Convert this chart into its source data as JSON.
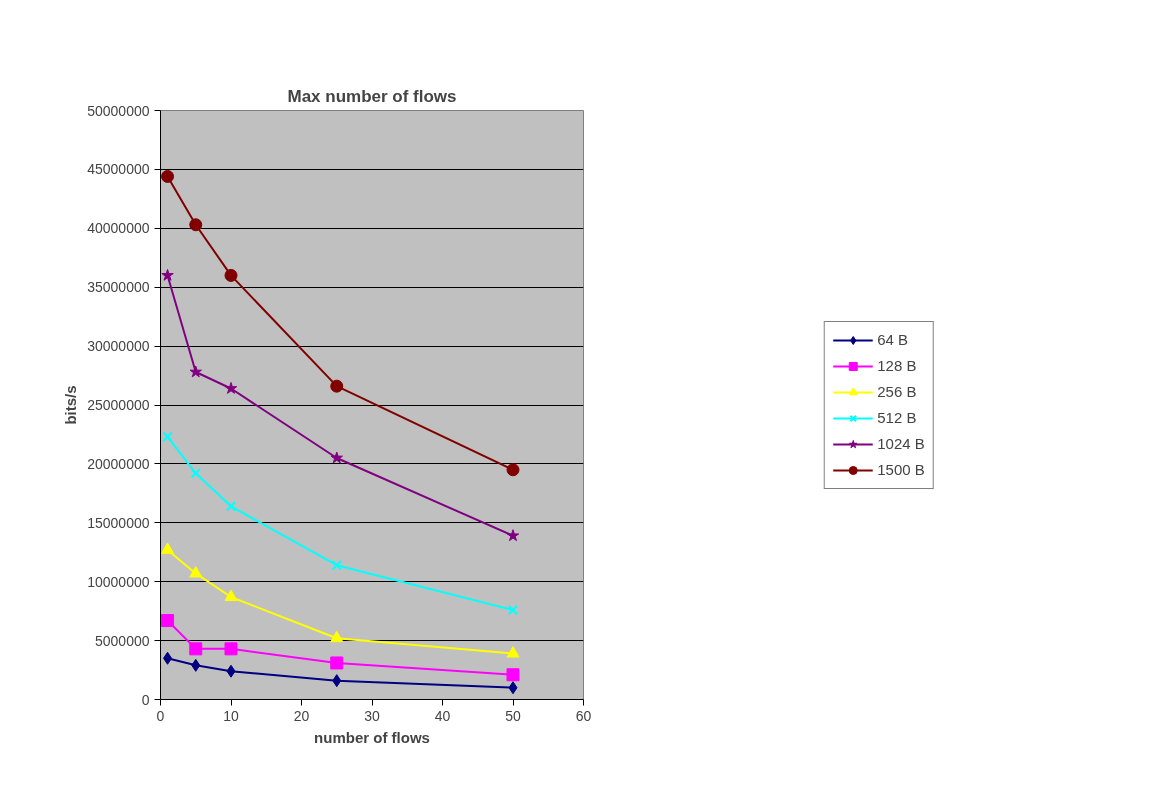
{
  "chart_data": {
    "type": "line",
    "title": "Max number of flows",
    "xlabel": "number of flows",
    "ylabel": "bits/s",
    "x": [
      1,
      5,
      10,
      25,
      50
    ],
    "series": [
      {
        "name": "64 B",
        "color": "#000080",
        "marker": "diamond",
        "values": [
          3500000,
          2900000,
          2400000,
          1600000,
          1000000
        ]
      },
      {
        "name": "128 B",
        "color": "#ff00ff",
        "marker": "square",
        "values": [
          6700000,
          4300000,
          4300000,
          3100000,
          2100000
        ]
      },
      {
        "name": "256 B",
        "color": "#ffff00",
        "marker": "triangle",
        "values": [
          12700000,
          10700000,
          8700000,
          5200000,
          3900000
        ]
      },
      {
        "name": "512 B",
        "color": "#00ffff",
        "marker": "cross",
        "values": [
          22300000,
          19200000,
          16400000,
          11400000,
          7600000
        ]
      },
      {
        "name": "1024 B",
        "color": "#800080",
        "marker": "star",
        "values": [
          36000000,
          27800000,
          26400000,
          20500000,
          13900000
        ]
      },
      {
        "name": "1500 B",
        "color": "#800000",
        "marker": "circle",
        "values": [
          44400000,
          40300000,
          36000000,
          26600000,
          19500000
        ]
      }
    ],
    "xlim": [
      0,
      60
    ],
    "xticks": [
      0,
      10,
      20,
      30,
      40,
      50,
      60
    ],
    "ylim": [
      0,
      50000000
    ],
    "yticks": [
      0,
      5000000,
      10000000,
      15000000,
      20000000,
      25000000,
      30000000,
      35000000,
      40000000,
      45000000,
      50000000
    ],
    "grid": "y",
    "legend": "right",
    "line_style": "solid"
  }
}
